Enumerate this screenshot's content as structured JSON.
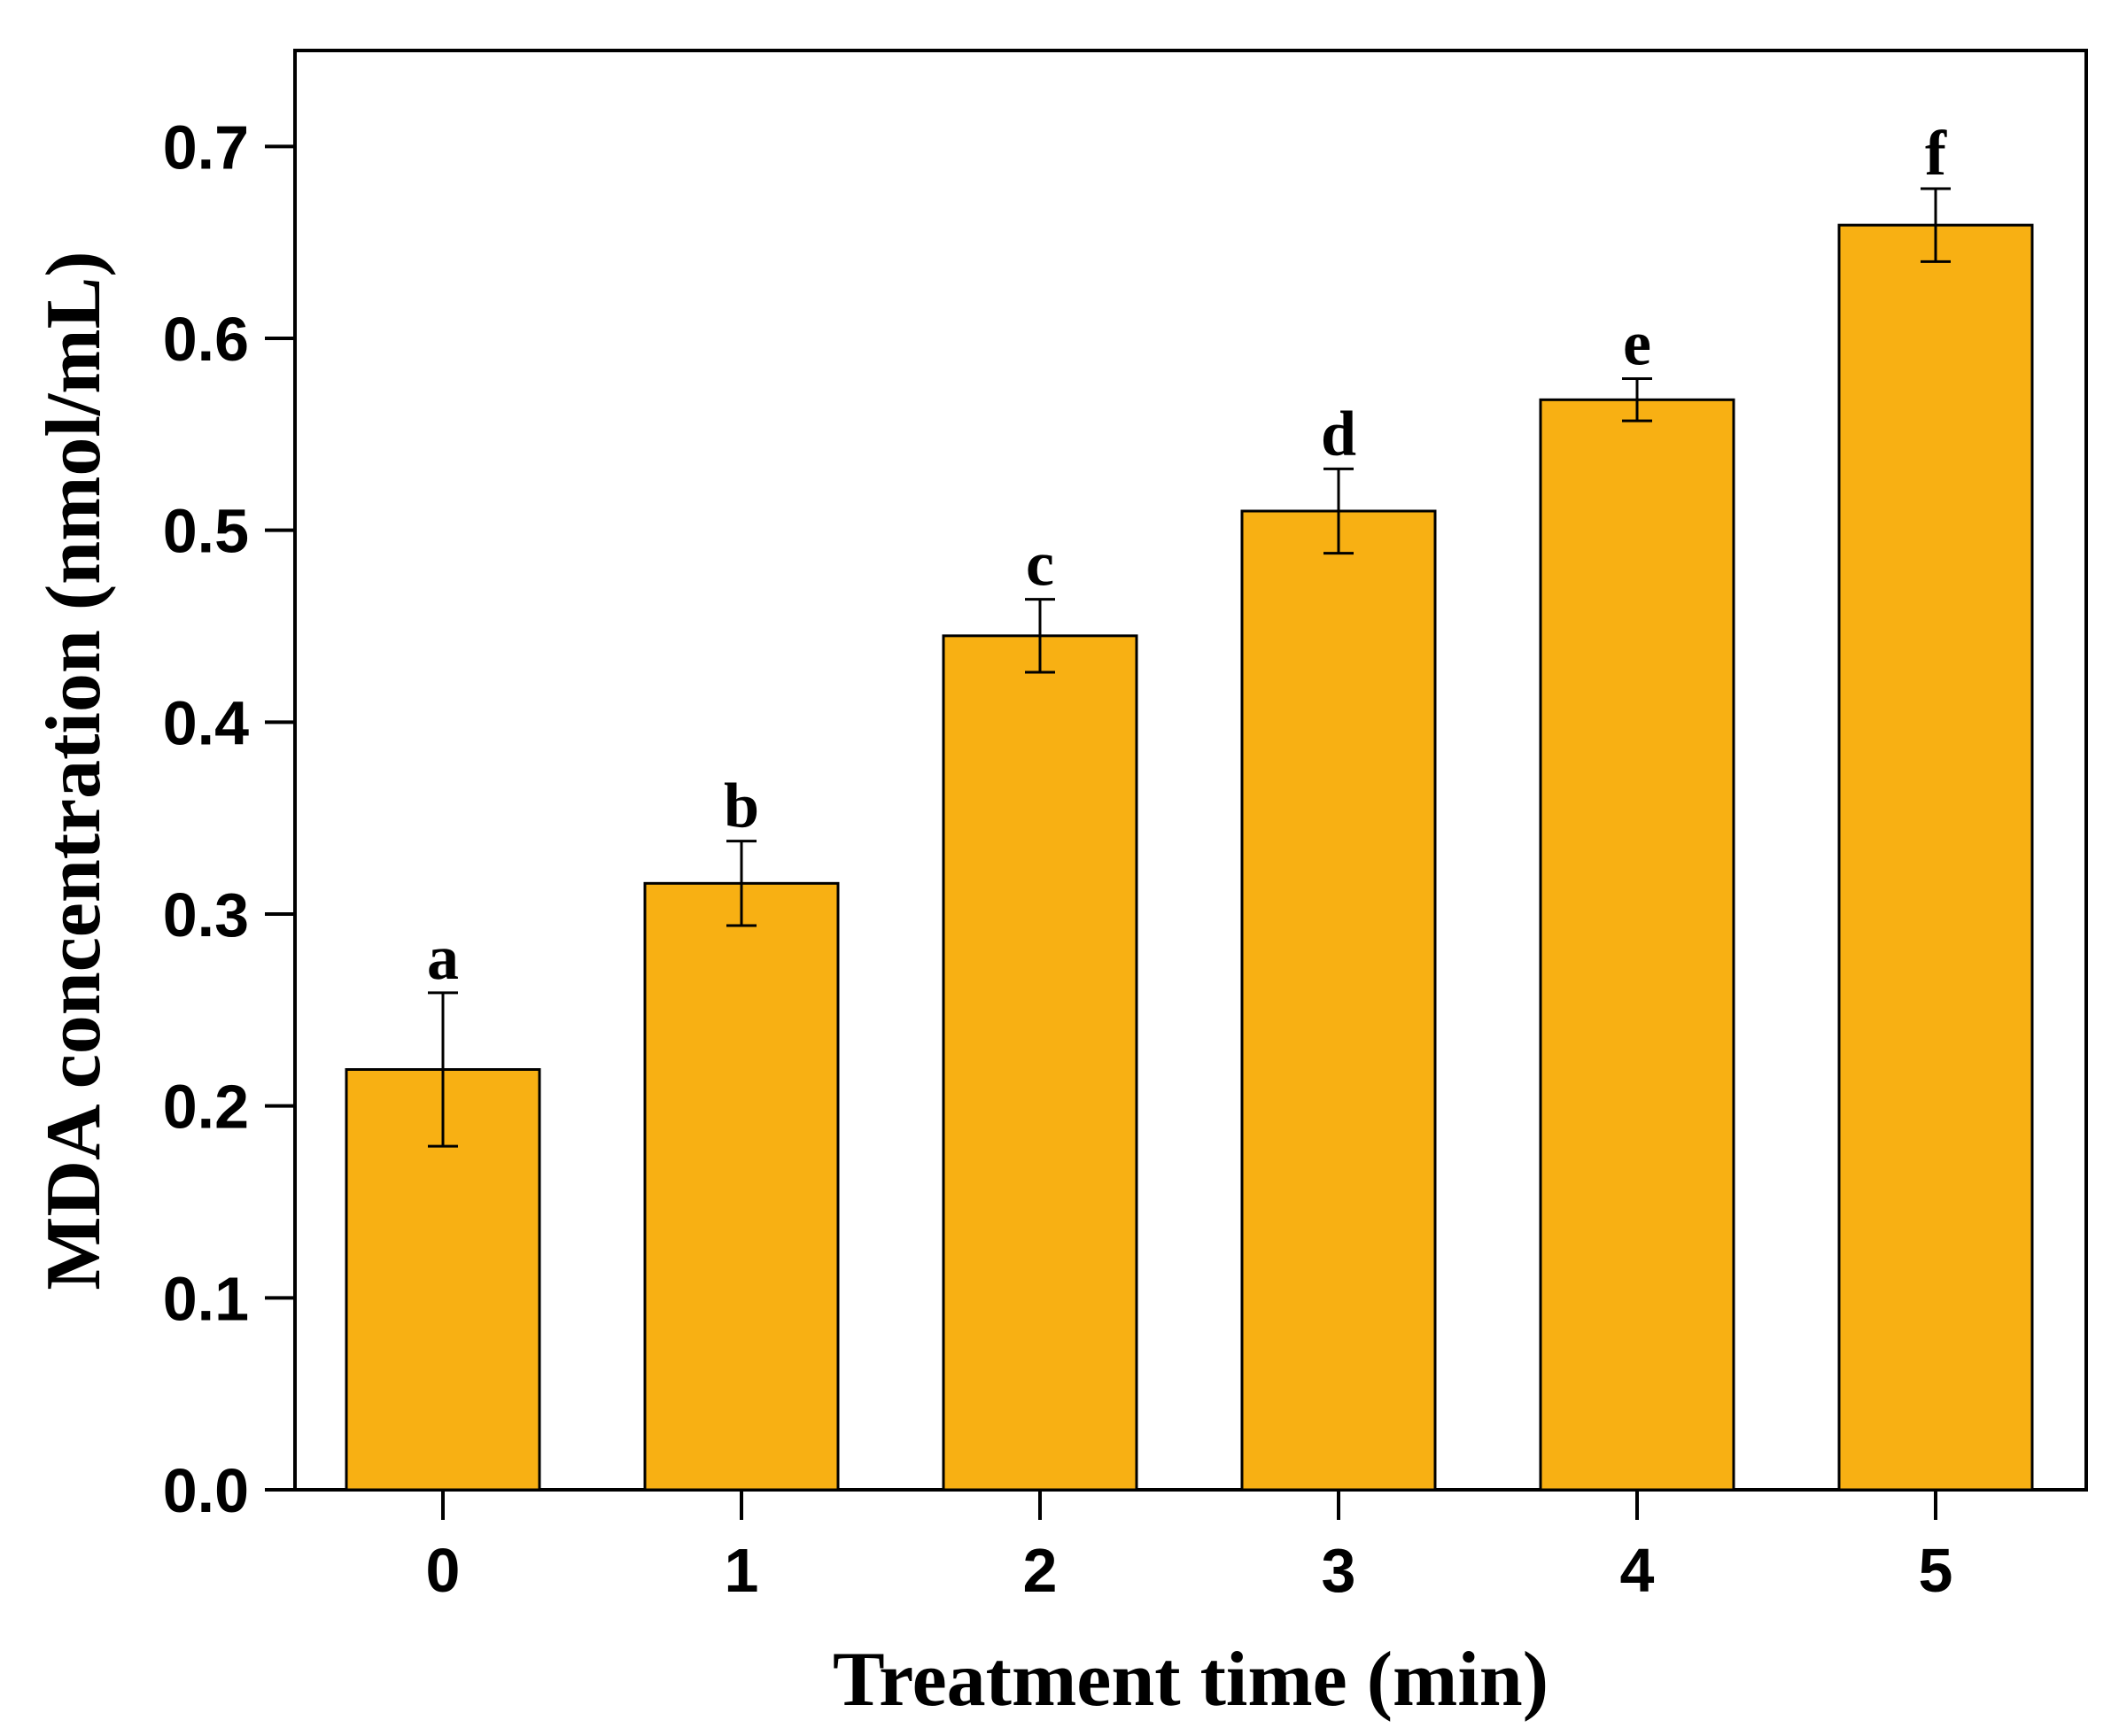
{
  "chart_data": {
    "type": "bar",
    "title": "",
    "xlabel": "Treatment time (min)",
    "ylabel": "MDA concentration (nmol/mL)",
    "categories": [
      "0",
      "1",
      "2",
      "3",
      "4",
      "5"
    ],
    "values": [
      0.219,
      0.316,
      0.445,
      0.51,
      0.568,
      0.659
    ],
    "errors": [
      0.04,
      0.022,
      0.019,
      0.022,
      0.011,
      0.019
    ],
    "significance_letters": [
      "a",
      "b",
      "c",
      "d",
      "e",
      "f"
    ],
    "ylim": [
      0,
      0.75
    ],
    "yticks": [
      "0.0",
      "0.1",
      "0.2",
      "0.3",
      "0.4",
      "0.5",
      "0.6",
      "0.7"
    ],
    "bar_color": "#F8B013",
    "bar_edge_color": "#000000",
    "grid": false,
    "legend": "none"
  }
}
